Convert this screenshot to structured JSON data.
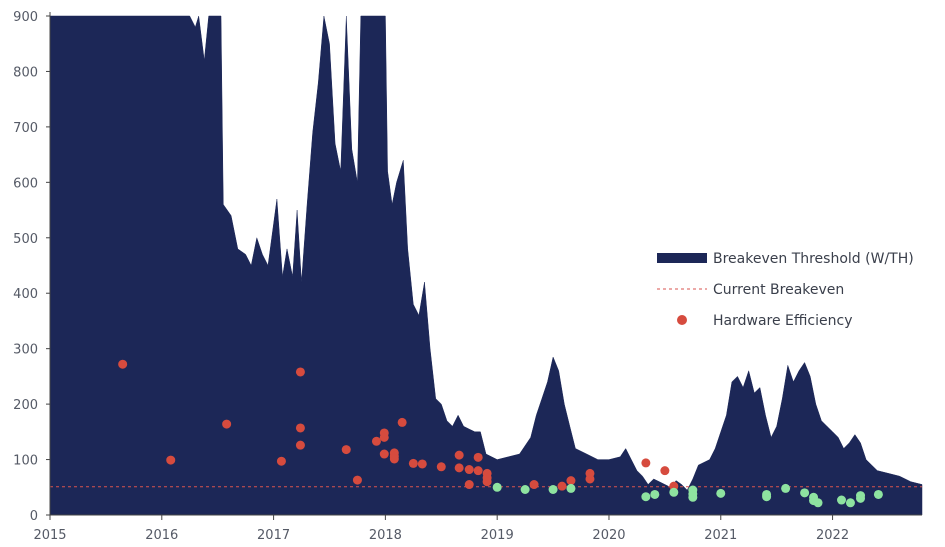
{
  "chart_data": {
    "type": "area",
    "title": "",
    "xlabel": "",
    "ylabel": "",
    "xlim": [
      2015.0,
      2022.8
    ],
    "ylim": [
      0,
      900
    ],
    "grid": false,
    "legend_position": "right",
    "x_ticks": [
      "2015",
      "2016",
      "2017",
      "2018",
      "2019",
      "2020",
      "2021",
      "2022"
    ],
    "y_ticks": [
      "0",
      "100",
      "200",
      "300",
      "400",
      "500",
      "600",
      "700",
      "800",
      "900"
    ],
    "colors": {
      "area": "#1c2757",
      "breakeven_line": "#d9534f",
      "hardware_red": "#d64b3e",
      "hardware_green": "#8ee3a0",
      "axis": "#444444"
    },
    "series": [
      {
        "name": "Breakeven Threshold (W/TH)",
        "kind": "area",
        "points": [
          [
            2015.0,
            900
          ],
          [
            2016.25,
            900
          ],
          [
            2016.3,
            880
          ],
          [
            2016.33,
            900
          ],
          [
            2016.38,
            820
          ],
          [
            2016.42,
            900
          ],
          [
            2016.53,
            900
          ],
          [
            2016.55,
            560
          ],
          [
            2016.62,
            540
          ],
          [
            2016.68,
            480
          ],
          [
            2016.75,
            470
          ],
          [
            2016.8,
            450
          ],
          [
            2016.85,
            500
          ],
          [
            2016.9,
            470
          ],
          [
            2016.95,
            450
          ],
          [
            2017.03,
            570
          ],
          [
            2017.08,
            430
          ],
          [
            2017.12,
            480
          ],
          [
            2017.17,
            430
          ],
          [
            2017.21,
            550
          ],
          [
            2017.25,
            420
          ],
          [
            2017.3,
            560
          ],
          [
            2017.35,
            690
          ],
          [
            2017.4,
            780
          ],
          [
            2017.45,
            900
          ],
          [
            2017.5,
            850
          ],
          [
            2017.55,
            670
          ],
          [
            2017.6,
            620
          ],
          [
            2017.65,
            900
          ],
          [
            2017.7,
            660
          ],
          [
            2017.75,
            600
          ],
          [
            2017.78,
            900
          ],
          [
            2017.83,
            900
          ],
          [
            2018.0,
            900
          ],
          [
            2018.02,
            620
          ],
          [
            2018.06,
            560
          ],
          [
            2018.1,
            600
          ],
          [
            2018.16,
            640
          ],
          [
            2018.2,
            480
          ],
          [
            2018.25,
            380
          ],
          [
            2018.3,
            360
          ],
          [
            2018.35,
            420
          ],
          [
            2018.4,
            300
          ],
          [
            2018.45,
            210
          ],
          [
            2018.5,
            200
          ],
          [
            2018.55,
            170
          ],
          [
            2018.6,
            160
          ],
          [
            2018.65,
            180
          ],
          [
            2018.7,
            160
          ],
          [
            2018.75,
            155
          ],
          [
            2018.8,
            150
          ],
          [
            2018.85,
            150
          ],
          [
            2018.9,
            110
          ],
          [
            2018.95,
            105
          ],
          [
            2019.0,
            100
          ],
          [
            2019.1,
            105
          ],
          [
            2019.2,
            110
          ],
          [
            2019.3,
            140
          ],
          [
            2019.35,
            180
          ],
          [
            2019.4,
            210
          ],
          [
            2019.45,
            240
          ],
          [
            2019.5,
            285
          ],
          [
            2019.55,
            260
          ],
          [
            2019.6,
            200
          ],
          [
            2019.65,
            160
          ],
          [
            2019.7,
            120
          ],
          [
            2019.8,
            110
          ],
          [
            2019.9,
            100
          ],
          [
            2020.0,
            100
          ],
          [
            2020.1,
            105
          ],
          [
            2020.15,
            120
          ],
          [
            2020.2,
            100
          ],
          [
            2020.25,
            80
          ],
          [
            2020.3,
            70
          ],
          [
            2020.35,
            55
          ],
          [
            2020.4,
            65
          ],
          [
            2020.45,
            60
          ],
          [
            2020.5,
            55
          ],
          [
            2020.55,
            50
          ],
          [
            2020.6,
            62
          ],
          [
            2020.65,
            55
          ],
          [
            2020.7,
            45
          ],
          [
            2020.75,
            65
          ],
          [
            2020.8,
            90
          ],
          [
            2020.9,
            100
          ],
          [
            2020.95,
            120
          ],
          [
            2021.0,
            150
          ],
          [
            2021.05,
            180
          ],
          [
            2021.1,
            240
          ],
          [
            2021.15,
            250
          ],
          [
            2021.2,
            230
          ],
          [
            2021.25,
            260
          ],
          [
            2021.3,
            220
          ],
          [
            2021.35,
            230
          ],
          [
            2021.4,
            180
          ],
          [
            2021.45,
            140
          ],
          [
            2021.5,
            160
          ],
          [
            2021.55,
            210
          ],
          [
            2021.6,
            270
          ],
          [
            2021.65,
            240
          ],
          [
            2021.7,
            260
          ],
          [
            2021.75,
            275
          ],
          [
            2021.8,
            250
          ],
          [
            2021.85,
            200
          ],
          [
            2021.9,
            170
          ],
          [
            2021.95,
            160
          ],
          [
            2022.0,
            150
          ],
          [
            2022.05,
            140
          ],
          [
            2022.1,
            120
          ],
          [
            2022.15,
            130
          ],
          [
            2022.2,
            145
          ],
          [
            2022.25,
            130
          ],
          [
            2022.3,
            100
          ],
          [
            2022.35,
            90
          ],
          [
            2022.4,
            80
          ],
          [
            2022.5,
            75
          ],
          [
            2022.6,
            70
          ],
          [
            2022.7,
            60
          ],
          [
            2022.8,
            55
          ]
        ]
      },
      {
        "name": "Current Breakeven",
        "kind": "dashed-line",
        "value": 51
      },
      {
        "name": "Hardware Efficiency",
        "kind": "scatter",
        "points_red": [
          [
            2015.65,
            272
          ],
          [
            2016.08,
            99
          ],
          [
            2016.58,
            164
          ],
          [
            2017.07,
            97
          ],
          [
            2017.24,
            258
          ],
          [
            2017.24,
            157
          ],
          [
            2017.24,
            126
          ],
          [
            2017.65,
            118
          ],
          [
            2017.75,
            63
          ],
          [
            2017.92,
            133
          ],
          [
            2017.99,
            140
          ],
          [
            2017.99,
            148
          ],
          [
            2017.99,
            110
          ],
          [
            2018.08,
            112
          ],
          [
            2018.08,
            106
          ],
          [
            2018.08,
            101
          ],
          [
            2018.15,
            167
          ],
          [
            2018.25,
            93
          ],
          [
            2018.33,
            92
          ],
          [
            2018.5,
            87
          ],
          [
            2018.66,
            108
          ],
          [
            2018.66,
            85
          ],
          [
            2018.75,
            82
          ],
          [
            2018.75,
            55
          ],
          [
            2018.83,
            104
          ],
          [
            2018.83,
            80
          ],
          [
            2018.91,
            75
          ],
          [
            2018.91,
            67
          ],
          [
            2018.91,
            60
          ],
          [
            2019.33,
            55
          ],
          [
            2019.58,
            52
          ],
          [
            2019.66,
            62
          ],
          [
            2019.83,
            65
          ],
          [
            2019.83,
            75
          ],
          [
            2020.33,
            94
          ],
          [
            2020.5,
            80
          ],
          [
            2020.58,
            52
          ]
        ],
        "points_green": [
          [
            2019.0,
            50
          ],
          [
            2019.25,
            46
          ],
          [
            2019.5,
            46
          ],
          [
            2019.66,
            48
          ],
          [
            2020.33,
            33
          ],
          [
            2020.41,
            37
          ],
          [
            2020.58,
            41
          ],
          [
            2020.75,
            45
          ],
          [
            2020.75,
            38
          ],
          [
            2020.75,
            32
          ],
          [
            2021.0,
            39
          ],
          [
            2021.41,
            37
          ],
          [
            2021.41,
            33
          ],
          [
            2021.58,
            48
          ],
          [
            2021.75,
            40
          ],
          [
            2021.83,
            32
          ],
          [
            2021.83,
            26
          ],
          [
            2021.87,
            22
          ],
          [
            2022.08,
            27
          ],
          [
            2022.16,
            22
          ],
          [
            2022.25,
            35
          ],
          [
            2022.25,
            30
          ],
          [
            2022.41,
            37
          ]
        ]
      }
    ],
    "legend": [
      {
        "label": "Breakeven Threshold (W/TH)",
        "symbol": "area"
      },
      {
        "label": "Current Breakeven",
        "symbol": "dashed"
      },
      {
        "label": "Hardware Efficiency",
        "symbol": "dot"
      }
    ]
  }
}
